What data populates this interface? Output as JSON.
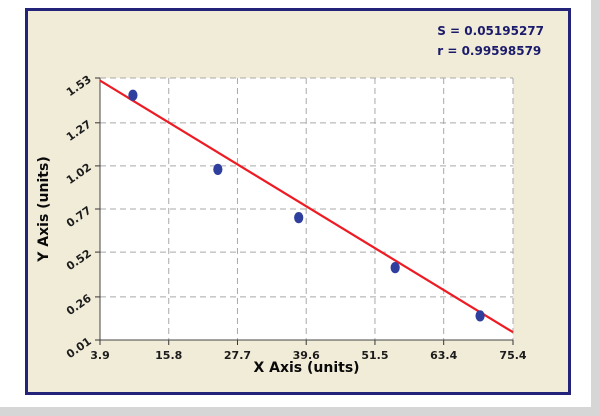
{
  "panel": {
    "background": "#f1ecd8",
    "border_color": "#23237a"
  },
  "stats": {
    "s_label": "S = 0.05195277",
    "r_label": "r = 0.99598579"
  },
  "chart_data": {
    "type": "scatter",
    "title": "",
    "xlabel": "X Axis (units)",
    "ylabel": "Y Axis (units)",
    "xlim": [
      3.9,
      75.4
    ],
    "ylim": [
      0.01,
      1.53
    ],
    "xticks": [
      "3.9",
      "15.8",
      "27.7",
      "39.6",
      "51.5",
      "63.4",
      "75.4"
    ],
    "yticks": [
      "0.01",
      "0.26",
      "0.52",
      "0.77",
      "1.02",
      "1.27",
      "1.53"
    ],
    "grid": "dashed",
    "legend": false,
    "points": [
      {
        "x": 9.6,
        "y": 1.43
      },
      {
        "x": 24.3,
        "y": 1.0
      },
      {
        "x": 38.3,
        "y": 0.72
      },
      {
        "x": 55.0,
        "y": 0.43
      },
      {
        "x": 69.7,
        "y": 0.15
      }
    ],
    "point_color": "#2e3f9e",
    "trendline": {
      "x1": 3.9,
      "y1": 1.515,
      "x2": 75.4,
      "y2": 0.055,
      "color": "#ed1c24"
    },
    "annotations": [
      "S = 0.05195277",
      "r = 0.99598579"
    ]
  }
}
